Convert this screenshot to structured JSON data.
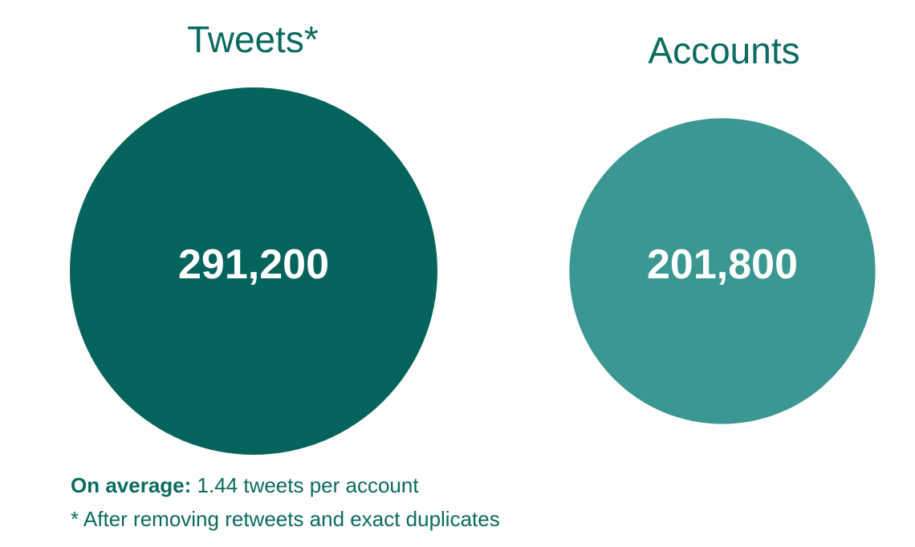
{
  "chart_data": {
    "type": "bubble",
    "items": [
      {
        "label": "Tweets*",
        "value": 291200,
        "value_label": "291,200",
        "color": "#04645b"
      },
      {
        "label": "Accounts",
        "value": 201800,
        "value_label": "201,800",
        "color": "#3a9791"
      }
    ],
    "value_text_color": "#ffffff",
    "title_color": "#0b6b60"
  },
  "notes": {
    "average_label": "On average:",
    "average_text": " 1.44 tweets per account",
    "footnote": "* After removing retweets and exact duplicates"
  }
}
